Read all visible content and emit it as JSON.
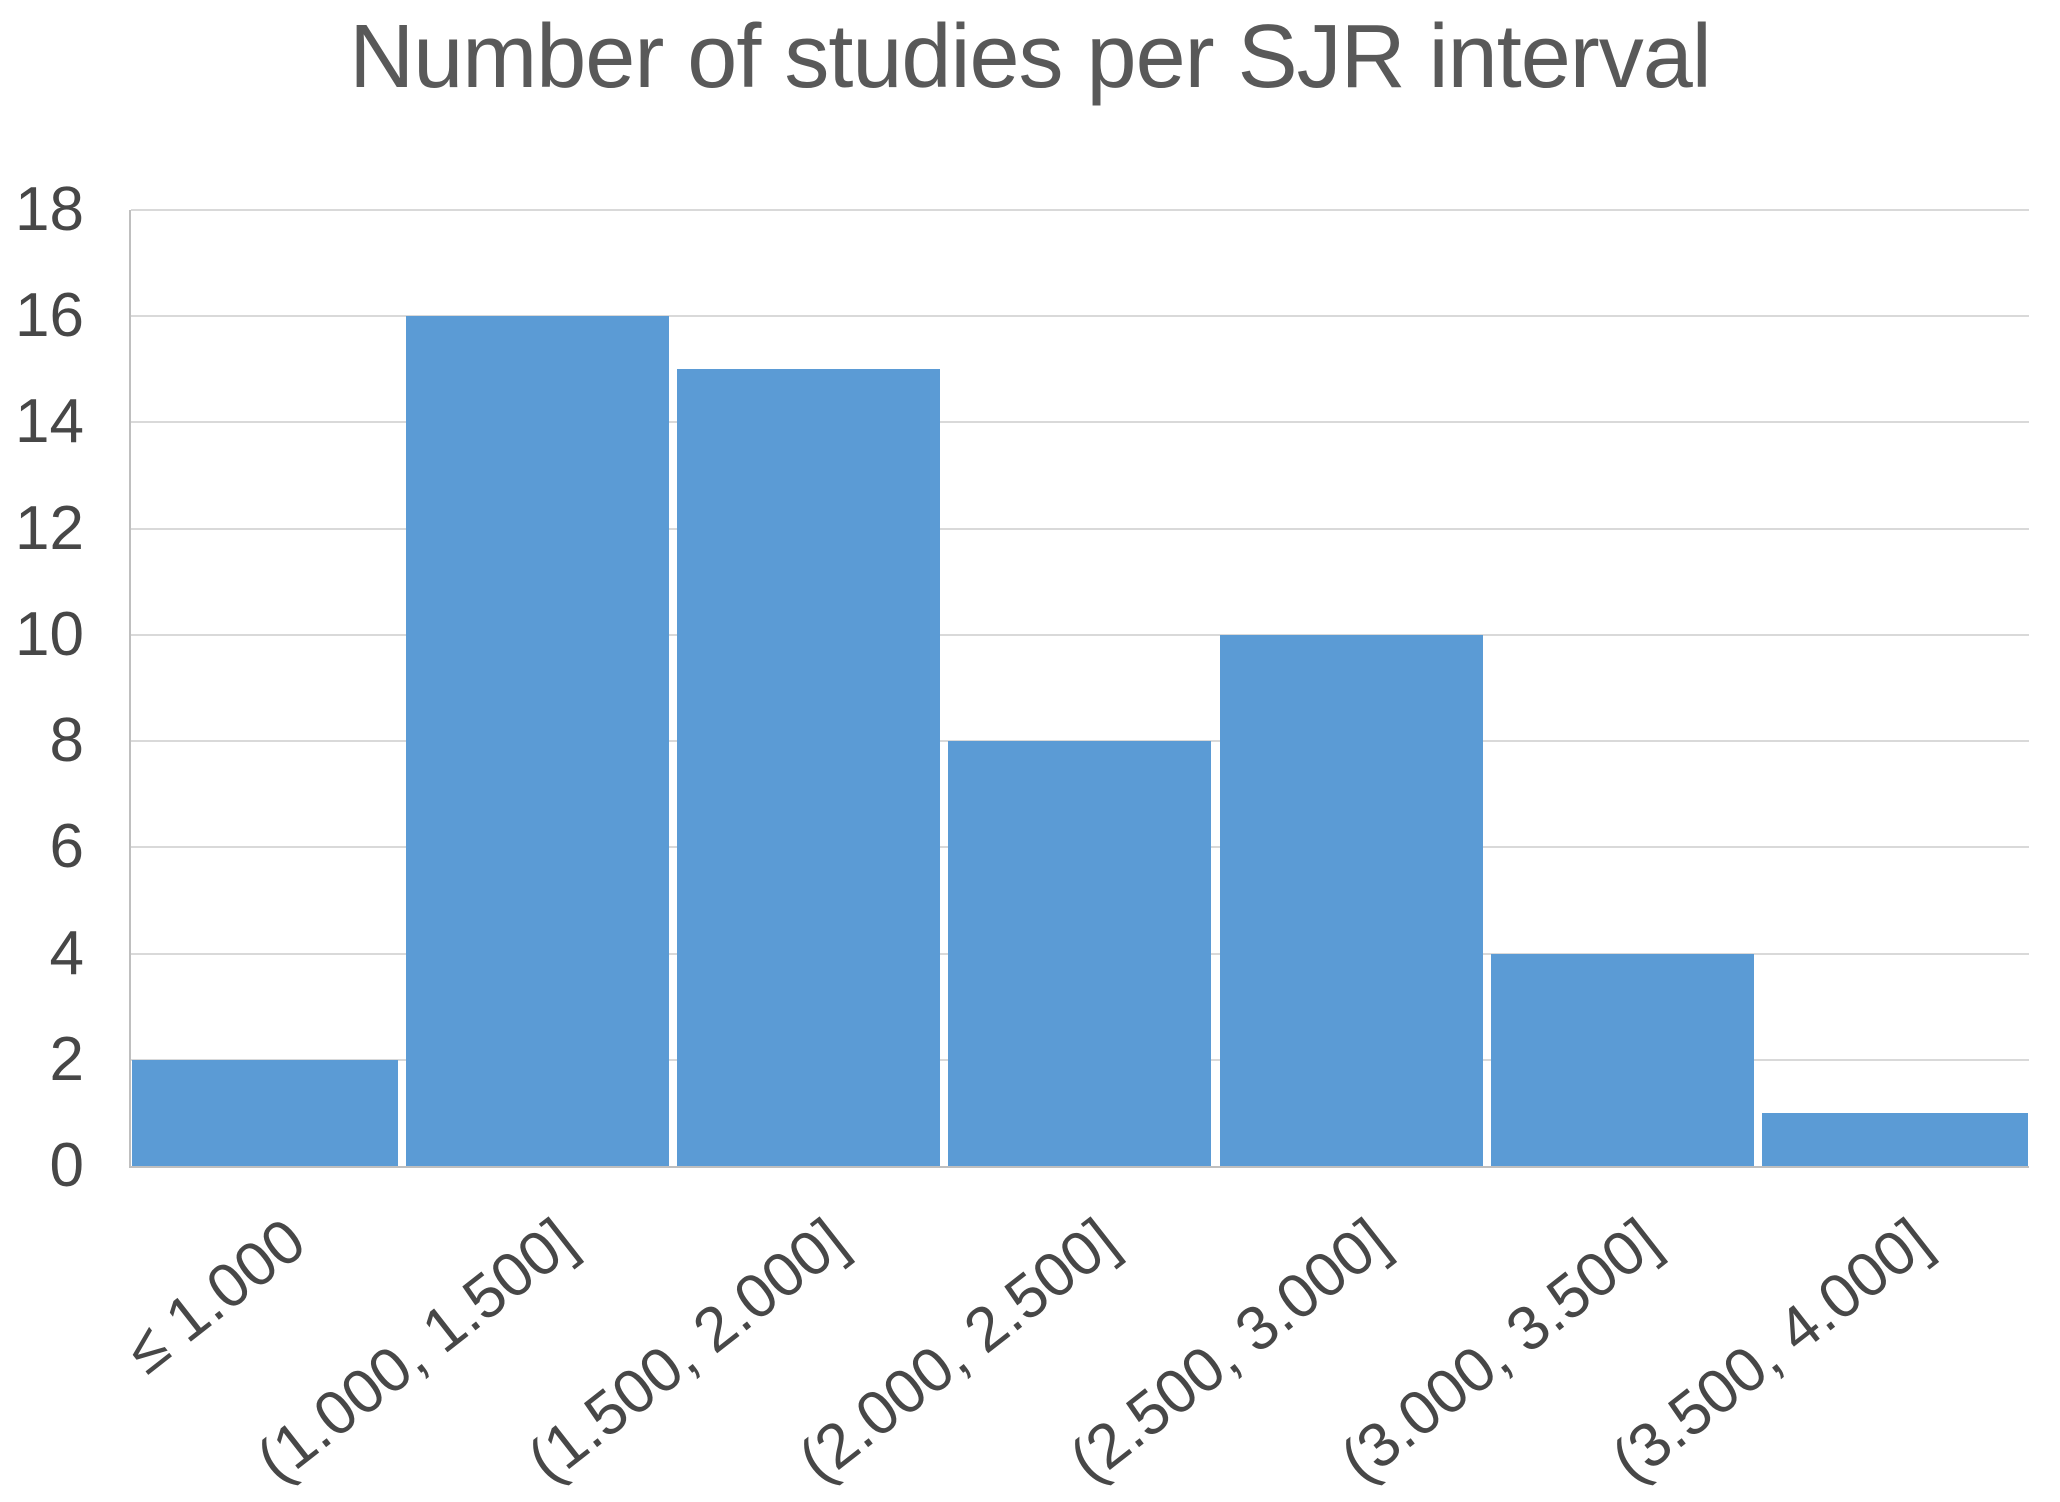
{
  "title": "Number of studies per SJR interval",
  "colors": {
    "bar": "#5B9BD5",
    "gridline": "#D9D9D9",
    "axis_line": "#BFBFBF",
    "title_text": "#595959",
    "tick_text": "#474747",
    "background": "#FFFFFF"
  },
  "chart_data": {
    "type": "bar",
    "title": "Number of studies per SJR interval",
    "categories": [
      "≤ 1.000",
      "(1.000, 1.500]",
      "(1.500, 2.000]",
      "(2.000, 2.500]",
      "(2.500, 3.000]",
      "(3.000, 3.500]",
      "(3.500, 4.000]"
    ],
    "values": [
      2,
      16,
      15,
      8,
      10,
      4,
      1
    ],
    "xlabel": "",
    "ylabel": "",
    "ylim": [
      0,
      18
    ],
    "yticks": [
      0,
      2,
      4,
      6,
      8,
      10,
      12,
      14,
      16,
      18
    ],
    "grid": true,
    "legend": false,
    "x_label_rotation_deg": -38
  }
}
